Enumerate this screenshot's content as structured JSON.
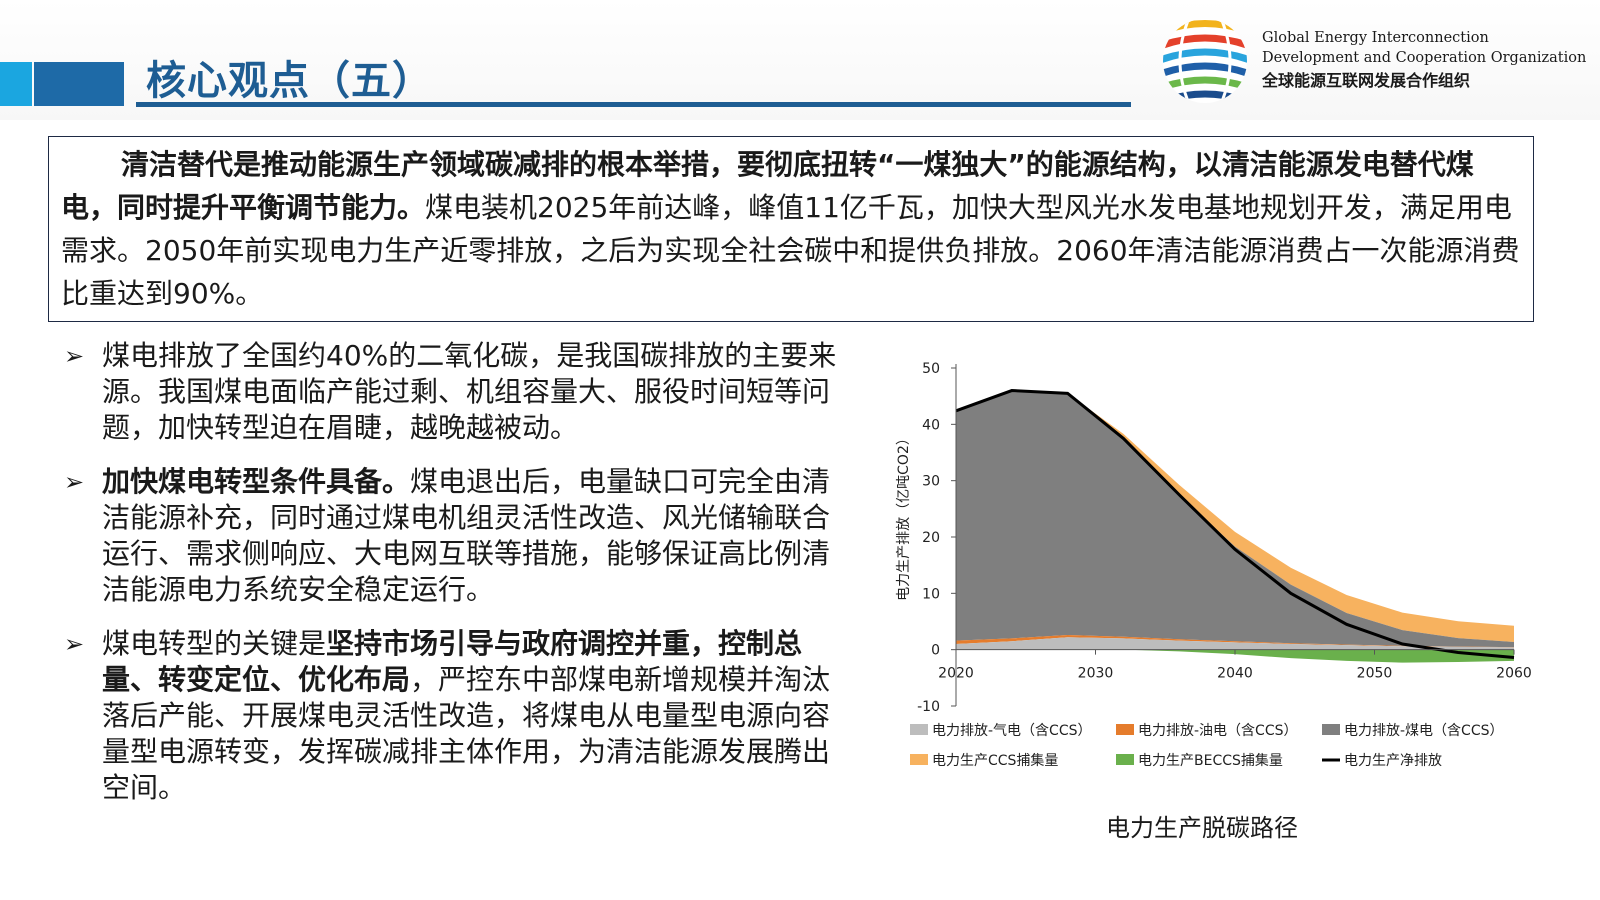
{
  "header": {
    "title": "核心观点（五）",
    "org_en_1": "Global Energy Interconnection",
    "org_en_2": "Development and Cooperation Organization",
    "org_cn": "全球能源互联网发展合作组织"
  },
  "summary": {
    "bold_text": "清洁替代是推动能源生产领域碳减排的根本举措，要彻底扭转“一煤独大”的能源结构，以清洁能源发电替代煤电，同时提升平衡调节能力。",
    "normal_text": "煤电装机2025年前达峰，峰值11亿千瓦，加快大型风光水发电基地规划开发，满足用电需求。2050年前实现电力生产近零排放，之后为实现全社会碳中和提供负排放。2060年清洁能源消费占一次能源消费比重达到90%。"
  },
  "bullets": {
    "b1": {
      "text": "煤电排放了全国约40%的二氧化碳，是我国碳排放的主要来源。我国煤电面临产能过剩、机组容量大、服役时间短等问题，加快转型迫在眉睫，越晚越被动。"
    },
    "b2": {
      "bold": "加快煤电转型条件具备。",
      "text": "煤电退出后，电量缺口可完全由清洁能源补充，同时通过煤电机组灵活性改造、风光储输联合运行、需求侧响应、大电网互联等措施，能够保证高比例清洁能源电力系统安全稳定运行。"
    },
    "b3": {
      "pre": "煤电转型的关键是",
      "bold": "坚持市场引导与政府调控并重，控制总量、转变定位、优化布局",
      "text": "，严控东中部煤电新增规模并淘汰落后产能、开展煤电灵活性改造，将煤电从电量型电源向容量型电源转变，发挥碳减排主体作用，为清洁能源发展腾出空间。"
    }
  },
  "chart_caption": "电力生产脱碳路径",
  "chart_data": {
    "type": "area",
    "ylabel": "电力生产排放（亿吨CO2）",
    "xlim": [
      2020,
      2060
    ],
    "ylim": [
      -10,
      50
    ],
    "x_ticks": [
      "2020",
      "2030",
      "2040",
      "2050",
      "2060"
    ],
    "y_ticks": [
      "50",
      "40",
      "30",
      "20",
      "10",
      "0",
      "-10"
    ],
    "x": [
      2020,
      2024,
      2028,
      2032,
      2036,
      2040,
      2044,
      2048,
      2052,
      2056,
      2060
    ],
    "series": [
      {
        "name": "电力排放-气电（含CCS）",
        "color": "#bdbdbd",
        "values": [
          1.0,
          1.5,
          2.2,
          2.0,
          1.6,
          1.3,
          1.0,
          0.8,
          0.6,
          0.5,
          0.4
        ]
      },
      {
        "name": "电力排放-油电（含CCS）",
        "color": "#e57c2c",
        "values": [
          0.6,
          0.5,
          0.4,
          0.3,
          0.25,
          0.2,
          0.15,
          0.1,
          0.08,
          0.05,
          0.05
        ]
      },
      {
        "name": "电力排放-煤电（含CCS）",
        "color": "#7f7f7f",
        "values": [
          40.8,
          44.0,
          42.9,
          35.2,
          25.6,
          16.8,
          10.4,
          5.6,
          2.8,
          1.5,
          0.9
        ]
      },
      {
        "name": "电力生产CCS捕集量",
        "color": "#f7b25f",
        "values": [
          0,
          0,
          0,
          0.8,
          1.8,
          2.6,
          3.0,
          3.2,
          3.1,
          3.0,
          2.9
        ]
      },
      {
        "name": "电力生产BECCS捕集量",
        "color": "#6ab04c",
        "values": [
          0,
          0,
          0,
          0,
          -0.3,
          -0.8,
          -1.5,
          -2.0,
          -2.3,
          -2.2,
          -2.0
        ]
      },
      {
        "name": "电力生产净排放",
        "color": "#000000",
        "values": [
          42.4,
          46.0,
          45.5,
          37.5,
          27.5,
          17.8,
          10.0,
          4.5,
          1.0,
          -0.5,
          -1.4
        ]
      }
    ],
    "legend_position": "bottom",
    "grid": false
  }
}
